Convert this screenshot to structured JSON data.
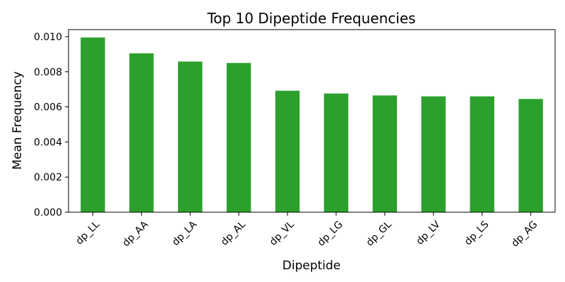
{
  "chart_data": {
    "type": "bar",
    "title": "Top 10 Dipeptide Frequencies",
    "xlabel": "Dipeptide",
    "ylabel": "Mean Frequency",
    "categories": [
      "dp_LL",
      "dp_AA",
      "dp_LA",
      "dp_AL",
      "dp_VL",
      "dp_LG",
      "dp_GL",
      "dp_LV",
      "dp_LS",
      "dp_AG"
    ],
    "values": [
      0.00995,
      0.00905,
      0.00858,
      0.0085,
      0.00692,
      0.00676,
      0.00665,
      0.0066,
      0.0066,
      0.00645
    ],
    "ylim": [
      0,
      0.0104
    ],
    "yticks": [
      "0.000",
      "0.002",
      "0.004",
      "0.006",
      "0.008",
      "0.010"
    ],
    "bar_color": "#2ca02c",
    "grid": false,
    "legend": "none"
  }
}
